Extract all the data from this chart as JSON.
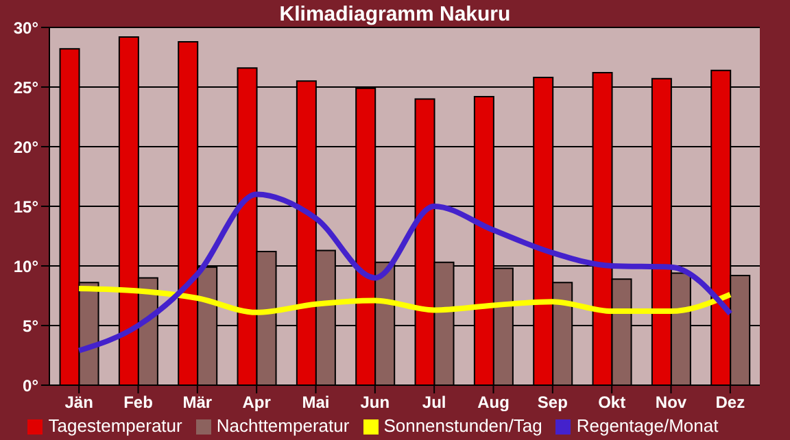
{
  "chart_data": {
    "type": "bar",
    "title": "Klimadiagramm Nakuru",
    "categories": [
      "Jän",
      "Feb",
      "Mär",
      "Apr",
      "Mai",
      "Jun",
      "Jul",
      "Aug",
      "Sep",
      "Okt",
      "Nov",
      "Dez"
    ],
    "series": [
      {
        "name": "Tagestemperatur",
        "color": "#e00000",
        "values": [
          28.2,
          29.2,
          28.8,
          26.6,
          25.5,
          24.9,
          24.0,
          24.2,
          25.8,
          26.2,
          25.7,
          26.4
        ]
      },
      {
        "name": "Nachttemperatur",
        "color": "#8c625e",
        "values": [
          8.6,
          9.0,
          9.9,
          11.2,
          11.3,
          10.3,
          10.3,
          9.8,
          8.6,
          8.9,
          9.4,
          9.2
        ]
      },
      {
        "name": "Sonnenstunden/Tag",
        "type": "line",
        "color": "#ffff00",
        "values": [
          8.1,
          7.9,
          7.3,
          6.1,
          6.8,
          7.1,
          6.3,
          6.7,
          7.0,
          6.2,
          6.2,
          7.6
        ]
      },
      {
        "name": "Regentage/Monat",
        "type": "line",
        "color": "#4422cc",
        "values": [
          2.9,
          5.0,
          9.3,
          16.0,
          14.0,
          9.0,
          15.0,
          13.0,
          11.1,
          10.0,
          9.9,
          6.0
        ]
      }
    ],
    "ylim": [
      0,
      30
    ],
    "yticks": [
      {
        "value": 0,
        "label": "0°"
      },
      {
        "value": 5,
        "label": "5°"
      },
      {
        "value": 10,
        "label": "10°"
      },
      {
        "value": 15,
        "label": "15°"
      },
      {
        "value": 20,
        "label": "20°"
      },
      {
        "value": 25,
        "label": "25°"
      },
      {
        "value": 30,
        "label": "30°"
      }
    ],
    "grid": "y",
    "legend": "bottom",
    "marker": "none"
  }
}
